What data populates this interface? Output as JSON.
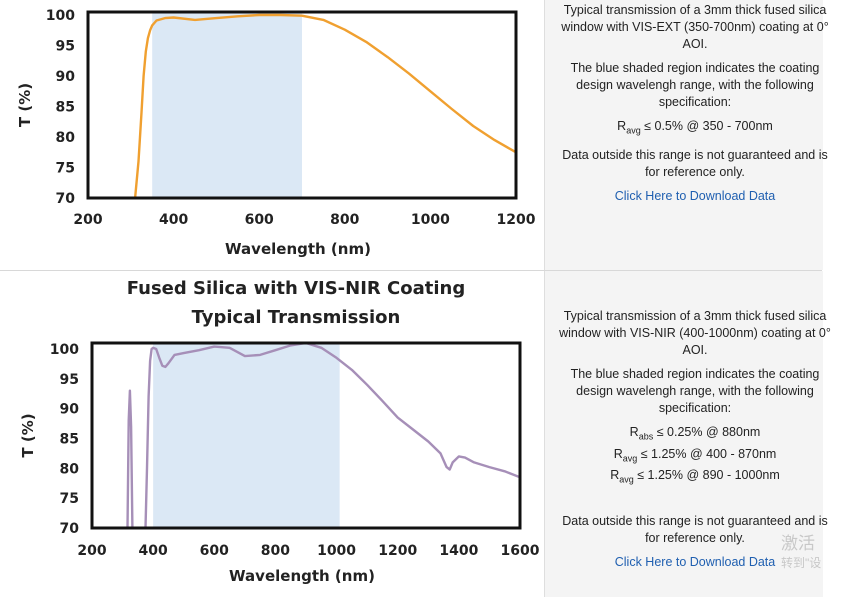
{
  "panels": [
    {
      "description": {
        "intro": "Typical transmission of a 3mm thick fused silica window with VIS-EXT (350-700nm) coating at 0° AOI.",
        "shaded_note": "The blue shaded region indicates the coating design wavelengh range, with the following specification:",
        "specs": [
          {
            "symbol": "R",
            "sub": "avg",
            "text": " ≤ 0.5% @ 350 - 700nm"
          }
        ],
        "disclaimer": "Data outside this range is not guaranteed and is for reference only.",
        "download_label": "Click Here to Download Data"
      }
    },
    {
      "description": {
        "intro": "Typical transmission of a 3mm thick fused silica window with VIS-NIR (400-1000nm) coating at 0° AOI.",
        "shaded_note": "The blue shaded region indicates the coating design wavelengh range, with the following specification:",
        "specs": [
          {
            "symbol": "R",
            "sub": "abs",
            "text": " ≤ 0.25% @ 880nm"
          },
          {
            "symbol": "R",
            "sub": "avg",
            "text": " ≤ 1.25% @ 400 - 870nm"
          },
          {
            "symbol": "R",
            "sub": "avg",
            "text": " ≤ 1.25% @ 890 - 1000nm"
          }
        ],
        "disclaimer": "Data outside this range is not guaranteed and is for reference only.",
        "download_label": "Click Here to Download Data"
      }
    }
  ],
  "watermark": {
    "line1": "激活",
    "line2": "转到\"设"
  },
  "chart_data": [
    {
      "type": "line",
      "title": [],
      "xlabel": "Wavelength (nm)",
      "ylabel": "T (%)",
      "xlim": [
        200,
        1200
      ],
      "ylim": [
        70,
        100.5
      ],
      "xticks": [
        200,
        400,
        600,
        800,
        1000,
        1200
      ],
      "yticks": [
        70,
        75,
        80,
        85,
        90,
        95,
        100
      ],
      "shaded_range": [
        350,
        700
      ],
      "shade_color": "#dbe8f5",
      "series": [
        {
          "color": "#f0a030",
          "x": [
            310,
            318,
            325,
            330,
            335,
            340,
            345,
            350,
            360,
            380,
            400,
            450,
            500,
            550,
            600,
            650,
            700,
            750,
            800,
            850,
            900,
            950,
            1000,
            1050,
            1100,
            1150,
            1200
          ],
          "y": [
            70,
            76,
            84,
            90,
            94,
            96.2,
            97.5,
            98.3,
            99.1,
            99.5,
            99.6,
            99.2,
            99.5,
            99.8,
            100,
            100,
            99.9,
            99.2,
            97.6,
            95.6,
            93.1,
            90.4,
            87.5,
            84.6,
            81.8,
            79.5,
            77.5
          ]
        }
      ]
    },
    {
      "type": "line",
      "title": [
        "Fused Silica with VIS-NIR Coating",
        "Typical Transmission"
      ],
      "xlabel": "Wavelength (nm)",
      "ylabel": "T (%)",
      "xlim": [
        200,
        1600
      ],
      "ylim": [
        70,
        101
      ],
      "xticks": [
        200,
        400,
        600,
        800,
        1000,
        1200,
        1400,
        1600
      ],
      "yticks": [
        70,
        75,
        80,
        85,
        90,
        95,
        100
      ],
      "shaded_range": [
        400,
        1010
      ],
      "shade_color": "#dbe8f5",
      "series": [
        {
          "color": "#a68fb8",
          "x": [
            316,
            320,
            324,
            328,
            332,
            355,
            375,
            380,
            385,
            390,
            395,
            400,
            410,
            420,
            430,
            440,
            450,
            470,
            500,
            550,
            600,
            650,
            700,
            750,
            800,
            850,
            900,
            950,
            1000,
            1050,
            1100,
            1150,
            1200,
            1250,
            1300,
            1340,
            1360,
            1370,
            1380,
            1390,
            1400,
            1420,
            1450,
            1500,
            1550,
            1600
          ],
          "y": [
            70,
            88,
            93,
            87,
            70,
            70,
            70,
            80,
            92,
            98,
            100,
            100.2,
            100,
            98.5,
            97.2,
            97.0,
            97.6,
            99.0,
            99.3,
            99.8,
            100.4,
            100.2,
            98.8,
            99.0,
            99.8,
            100.6,
            101,
            100.2,
            98.5,
            96.5,
            94.0,
            91.3,
            88.5,
            86.5,
            84.5,
            82.5,
            80.2,
            79.8,
            81.0,
            81.5,
            82.0,
            81.8,
            81.0,
            80.2,
            79.5,
            78.5
          ]
        }
      ]
    }
  ]
}
